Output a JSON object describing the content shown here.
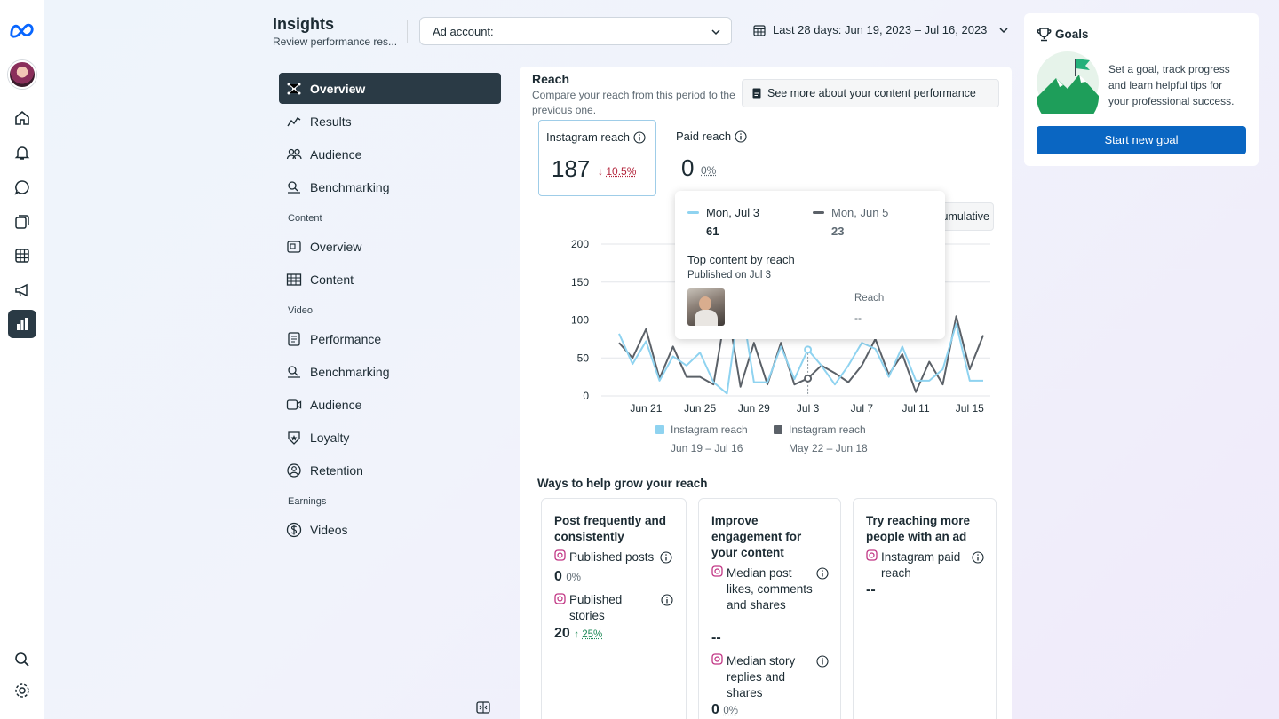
{
  "rail": {
    "icons": [
      "meta-logo-icon",
      "avatar",
      "home-icon",
      "bell-icon",
      "chat-icon",
      "pages-icon",
      "table-icon",
      "megaphone-icon",
      "insights-icon",
      "search-icon",
      "settings-icon"
    ]
  },
  "header": {
    "title": "Insights",
    "subtitle": "Review performance res...",
    "ad_account_label": "Ad account:",
    "date_range": "Last 28 days: Jun 19, 2023 – Jul 16, 2023"
  },
  "subnav": {
    "items": [
      {
        "label": "Overview",
        "icon": "overview-icon"
      },
      {
        "label": "Results",
        "icon": "results-icon"
      },
      {
        "label": "Audience",
        "icon": "audience-icon"
      },
      {
        "label": "Benchmarking",
        "icon": "benchmarking-icon"
      }
    ],
    "content_section": "Content",
    "content_items": [
      {
        "label": "Overview",
        "icon": "content-overview-icon"
      },
      {
        "label": "Content",
        "icon": "content-table-icon"
      }
    ],
    "video_section": "Video",
    "video_items": [
      {
        "label": "Performance",
        "icon": "performance-icon"
      },
      {
        "label": "Benchmarking",
        "icon": "benchmarking-icon"
      },
      {
        "label": "Audience",
        "icon": "video-audience-icon"
      },
      {
        "label": "Loyalty",
        "icon": "loyalty-icon"
      },
      {
        "label": "Retention",
        "icon": "retention-icon"
      }
    ],
    "earnings_section": "Earnings",
    "earnings_items": [
      {
        "label": "Videos",
        "icon": "dollar-icon"
      }
    ]
  },
  "reach": {
    "title": "Reach",
    "subtitle": "Compare your reach from this period to the previous one.",
    "see_more": "See more about your content performance",
    "instagram_label": "Instagram reach",
    "instagram_value": "187",
    "instagram_change": "10.5%",
    "paid_label": "Paid reach",
    "paid_value": "0",
    "paid_change": "0%",
    "cumulative_label": "Cumulative",
    "legend_current": "Instagram reach",
    "legend_current_range": "Jun 19 – Jul 16",
    "legend_previous": "Instagram reach",
    "legend_previous_range": "May 22 – Jun 18"
  },
  "tooltip": {
    "current_date": "Mon, Jul 3",
    "current_value": "61",
    "previous_date": "Mon, Jun 5",
    "previous_value": "23",
    "top_content": "Top content by reach",
    "published": "Published on Jul 3",
    "reach_label": "Reach",
    "reach_value": "--"
  },
  "grow": {
    "title": "Ways to help grow your reach",
    "cards": [
      {
        "title": "Post frequently and consistently",
        "metric1": "Published posts",
        "value1": "0",
        "change1": "0%",
        "metric2": "Published stories",
        "value2": "20",
        "change2": "25%"
      },
      {
        "title": "Improve engagement for your content",
        "metric1": "Median post likes, comments and shares",
        "value1": "--",
        "metric2": "Median story replies and shares",
        "value2": "0",
        "change2": "0%"
      },
      {
        "title": "Try reaching more people with an ad",
        "metric1": "Instagram paid reach",
        "value1": "--"
      }
    ]
  },
  "goals": {
    "title": "Goals",
    "text": "Set a goal, track progress and learn helpful tips for your professional success.",
    "button": "Start new goal"
  },
  "colors": {
    "current": "#8fd3f0",
    "previous": "#5b6168",
    "accent": "#0a66c2",
    "decline": "#b3243b",
    "growth": "#1e8a57"
  },
  "chart_data": {
    "type": "line",
    "ylim": [
      0,
      200
    ],
    "y_ticks": [
      0,
      50,
      100,
      150,
      200
    ],
    "x_tick_labels": [
      "Jun 21",
      "Jun 25",
      "Jun 29",
      "Jul 3",
      "Jul 7",
      "Jul 11",
      "Jul 15"
    ],
    "x": [
      "Jun 19",
      "Jun 20",
      "Jun 21",
      "Jun 22",
      "Jun 23",
      "Jun 24",
      "Jun 25",
      "Jun 26",
      "Jun 27",
      "Jun 28",
      "Jun 29",
      "Jun 30",
      "Jul 1",
      "Jul 2",
      "Jul 3",
      "Jul 4",
      "Jul 5",
      "Jul 6",
      "Jul 7",
      "Jul 8",
      "Jul 9",
      "Jul 10",
      "Jul 11",
      "Jul 12",
      "Jul 13",
      "Jul 14",
      "Jul 15",
      "Jul 16"
    ],
    "series": [
      {
        "name": "Instagram reach",
        "range": "Jun 19 – Jul 16",
        "values": [
          82,
          42,
          72,
          20,
          52,
          40,
          57,
          18,
          3,
          130,
          18,
          18,
          65,
          22,
          61,
          40,
          15,
          40,
          70,
          62,
          25,
          65,
          20,
          20,
          35,
          95,
          20,
          20
        ]
      },
      {
        "name": "Instagram reach",
        "range": "May 22 – Jun 18",
        "values": [
          70,
          50,
          88,
          23,
          65,
          25,
          25,
          15,
          120,
          12,
          70,
          15,
          70,
          15,
          23,
          40,
          30,
          18,
          40,
          75,
          28,
          55,
          5,
          45,
          15,
          105,
          35,
          80
        ]
      }
    ]
  }
}
